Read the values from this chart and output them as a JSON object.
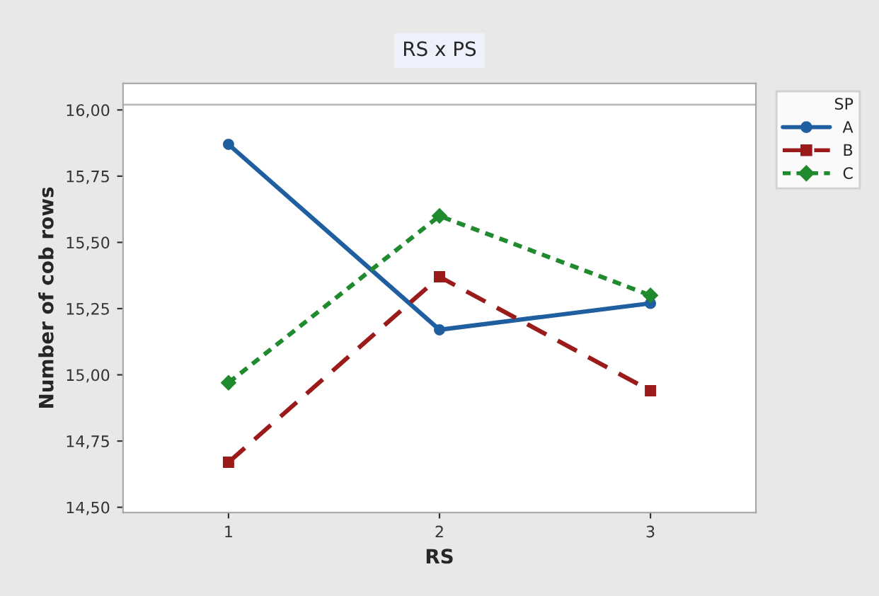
{
  "chart_data": {
    "type": "line",
    "title": "RS x PS",
    "xlabel": "RS",
    "ylabel": "Number of cob rows",
    "legend_title": "SP",
    "x": [
      1,
      2,
      3
    ],
    "series": [
      {
        "name": "A",
        "color": "#1f5fa0",
        "values": [
          15.87,
          15.17,
          15.27
        ],
        "marker": "circle",
        "line_style": "solid"
      },
      {
        "name": "B",
        "color": "#9b1b1b",
        "values": [
          14.67,
          15.37,
          14.94
        ],
        "marker": "square",
        "line_style": "dashed"
      },
      {
        "name": "C",
        "color": "#1f8a2e",
        "values": [
          14.97,
          15.6,
          15.3
        ],
        "marker": "diamond",
        "line_style": "dotted"
      }
    ],
    "xlim": [
      0.5,
      3.5
    ],
    "xticks": [
      1,
      2,
      3
    ],
    "ylim": [
      14.48,
      16.1
    ],
    "yticks": [
      {
        "value": 14.5,
        "label": "14,50"
      },
      {
        "value": 14.75,
        "label": "14,75"
      },
      {
        "value": 15.0,
        "label": "15,00"
      },
      {
        "value": 15.25,
        "label": "15,25"
      },
      {
        "value": 15.5,
        "label": "15,50"
      },
      {
        "value": 15.75,
        "label": "15,75"
      },
      {
        "value": 16.0,
        "label": "16,00"
      }
    ],
    "ref_lines": [
      {
        "axis": "y",
        "value": 16.02,
        "color": "#bbbbbb"
      }
    ],
    "grid": false,
    "legend": "top right"
  }
}
